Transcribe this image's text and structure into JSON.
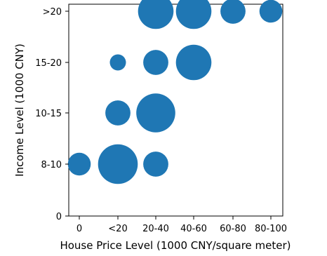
{
  "chart_data": {
    "type": "scatter",
    "title": "",
    "xlabel": "House Price Level (1000 CNY/square meter)",
    "ylabel": "Income Level (1000 CNY)",
    "x_categories": [
      "0",
      "<20",
      "20-40",
      "40-60",
      "60-80",
      "80-100"
    ],
    "y_categories": [
      "0",
      "8-10",
      "10-15",
      "15-20",
      ">20"
    ],
    "bubble_color": "#1f77b4",
    "size_unit": "relative bubble size",
    "points": [
      {
        "x": "0",
        "y": "8-10",
        "size": 1.0
      },
      {
        "x": "<20",
        "y": "8-10",
        "size": 3.0
      },
      {
        "x": "20-40",
        "y": "8-10",
        "size": 1.2
      },
      {
        "x": "<20",
        "y": "10-15",
        "size": 1.2
      },
      {
        "x": "20-40",
        "y": "10-15",
        "size": 2.9
      },
      {
        "x": "<20",
        "y": "15-20",
        "size": 0.5
      },
      {
        "x": "20-40",
        "y": "15-20",
        "size": 1.2
      },
      {
        "x": "40-60",
        "y": "15-20",
        "size": 2.4
      },
      {
        "x": "20-40",
        "y": ">20",
        "size": 2.4
      },
      {
        "x": "40-60",
        "y": ">20",
        "size": 2.4
      },
      {
        "x": "60-80",
        "y": ">20",
        "size": 1.2
      },
      {
        "x": "80-100",
        "y": ">20",
        "size": 1.0
      }
    ],
    "grid": false,
    "legend": "none"
  }
}
